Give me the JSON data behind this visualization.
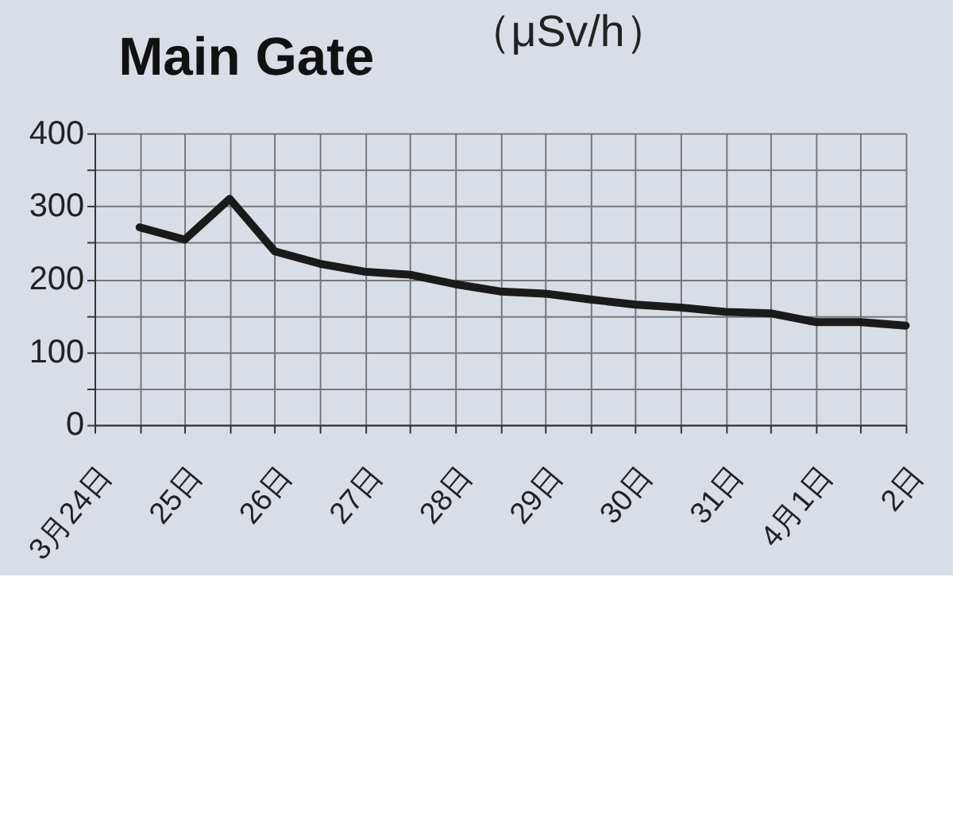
{
  "chart_data": {
    "type": "line",
    "title": "Main Gate",
    "ylabel": "（μSv/h）",
    "categories": [
      "3月24日",
      null,
      "25日",
      null,
      "26日",
      null,
      "27日",
      null,
      "28日",
      null,
      "29日",
      null,
      "30日",
      null,
      "31日",
      null,
      "4月1日",
      null,
      "2日"
    ],
    "values": [
      null,
      271,
      254,
      310,
      238,
      221,
      210,
      206,
      193,
      183,
      180,
      172,
      165,
      161,
      155,
      153,
      141,
      141,
      136
    ],
    "color": "#1a1a1a",
    "line_style": "solid",
    "ylim": [
      0,
      400
    ],
    "yticks": [
      0,
      {
        "value": 50,
        "label": null
      },
      100,
      {
        "value": 150,
        "label": null
      },
      200,
      {
        "value": 250,
        "label": null
      },
      300,
      {
        "value": 350,
        "label": null
      },
      400
    ],
    "grid": true
  }
}
